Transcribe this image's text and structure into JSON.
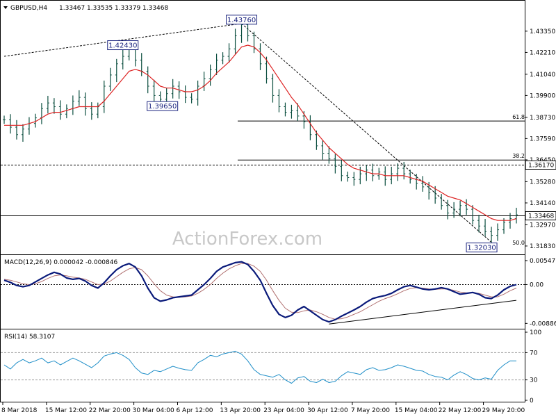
{
  "colors": {
    "background": "#ffffff",
    "price_bar": "#0b4e3f",
    "ma_line": "#dd2222",
    "macd_line": "#0a1a7a",
    "signal_line": "#b07070",
    "rsi_line": "#1e8ec8",
    "watermark": "#c8c8c8",
    "label_box": "#1a237e"
  },
  "chart_data": [
    {
      "type": "line",
      "panel": "price",
      "title": "GBPUSD,H4",
      "ohlc": {
        "open": "1.33467",
        "high": "1.33535",
        "low": "1.33379",
        "close": "1.33468"
      },
      "ylim": [
        1.3153,
        1.4435
      ],
      "y_ticks": [
        "1.43350",
        "1.42210",
        "1.41040",
        "1.39900",
        "1.38730",
        "1.37590",
        "1.36450",
        "1.35280",
        "1.34140",
        "1.32970",
        "1.31830"
      ],
      "x_tick_labels": [
        "8 Mar 2018",
        "15 Mar 12:00",
        "22 Mar 20:00",
        "30 Mar 04:00",
        "6 Apr 12:00",
        "13 Apr 20:00",
        "23 Apr 04:00",
        "30 Apr 12:00",
        "7 May 20:00",
        "15 May 04:00",
        "22 May 12:00",
        "29 May 20:00"
      ],
      "series": [
        {
          "role": "close",
          "values": [
            1.386,
            1.382,
            1.378,
            1.381,
            1.384,
            1.387,
            1.392,
            1.395,
            1.393,
            1.389,
            1.392,
            1.396,
            1.398,
            1.392,
            1.389,
            1.393,
            1.404,
            1.41,
            1.416,
            1.42,
            1.424,
            1.418,
            1.412,
            1.404,
            1.399,
            1.397,
            1.4,
            1.404,
            1.401,
            1.398,
            1.397,
            1.404,
            1.408,
            1.413,
            1.418,
            1.42,
            1.424,
            1.431,
            1.437,
            1.431,
            1.424,
            1.416,
            1.408,
            1.399,
            1.393,
            1.39,
            1.391,
            1.388,
            1.385,
            1.378,
            1.372,
            1.368,
            1.365,
            1.361,
            1.356,
            1.355,
            1.354,
            1.357,
            1.359,
            1.356,
            1.358,
            1.354,
            1.357,
            1.36,
            1.357,
            1.354,
            1.352,
            1.35,
            1.347,
            1.344,
            1.34,
            1.336,
            1.338,
            1.34,
            1.338,
            1.332,
            1.329,
            1.326,
            1.324,
            1.327,
            1.331,
            1.333,
            1.335
          ]
        },
        {
          "role": "moving-average",
          "values": [
            1.383,
            1.383,
            1.383,
            1.383,
            1.384,
            1.385,
            1.387,
            1.389,
            1.39,
            1.39,
            1.391,
            1.392,
            1.393,
            1.393,
            1.393,
            1.393,
            1.396,
            1.4,
            1.404,
            1.408,
            1.412,
            1.413,
            1.412,
            1.41,
            1.407,
            1.404,
            1.403,
            1.403,
            1.402,
            1.401,
            1.401,
            1.402,
            1.404,
            1.407,
            1.411,
            1.414,
            1.417,
            1.421,
            1.425,
            1.426,
            1.425,
            1.422,
            1.418,
            1.413,
            1.408,
            1.403,
            1.398,
            1.394,
            1.389,
            1.384,
            1.379,
            1.375,
            1.371,
            1.368,
            1.365,
            1.362,
            1.36,
            1.359,
            1.358,
            1.357,
            1.357,
            1.356,
            1.356,
            1.356,
            1.356,
            1.355,
            1.354,
            1.353,
            1.351,
            1.349,
            1.347,
            1.345,
            1.344,
            1.343,
            1.341,
            1.339,
            1.337,
            1.335,
            1.333,
            1.332,
            1.332,
            1.332,
            1.333
          ]
        }
      ],
      "annotations": [
        {
          "text": "1.43760",
          "x": 38,
          "y": 1.4376
        },
        {
          "text": "1.42430",
          "x": 19,
          "y": 1.4243
        },
        {
          "text": "1.39650",
          "x": 26,
          "y": 1.3965
        },
        {
          "text": "1.32030",
          "x": 78,
          "y": 1.3203
        }
      ],
      "horizontal_lines": [
        {
          "style": "dashed",
          "y": 1.3617,
          "value_label": "1.36170"
        },
        {
          "style": "solid",
          "y": 1.3345,
          "value_label": "1.33468"
        }
      ],
      "fibonacci": [
        {
          "level_label": "61.8",
          "y": 1.3853
        },
        {
          "level_label": "38.2",
          "y": 1.3644
        },
        {
          "level_label": "50.0",
          "y": 1.318
        }
      ],
      "trendlines": [
        {
          "style": "dashed",
          "from": [
            0,
            1.42
          ],
          "to": [
            38,
            1.4376
          ]
        },
        {
          "style": "dashed",
          "from": [
            38,
            1.4376
          ],
          "to": [
            78,
            1.3203
          ]
        }
      ],
      "watermark": "ActionForex.com"
    },
    {
      "type": "line",
      "panel": "macd",
      "title": "MACD(12,26,9) 0.000042 -0.000846",
      "ylim": [
        -0.0096,
        0.0061
      ],
      "y_ticks": [
        "0.00547",
        "0.00",
        "-0.00886"
      ],
      "series": [
        {
          "role": "macd",
          "values": [
            0.001,
            0.0005,
            -0.0002,
            -0.0005,
            -0.0002,
            0.0006,
            0.0014,
            0.0022,
            0.0028,
            0.0024,
            0.0015,
            0.0012,
            0.0014,
            0.0008,
            -0.0002,
            -0.0008,
            0.0004,
            0.002,
            0.0034,
            0.0043,
            0.0048,
            0.004,
            0.002,
            -0.0008,
            -0.003,
            -0.0038,
            -0.0035,
            -0.003,
            -0.0028,
            -0.0026,
            -0.0024,
            -0.0012,
            0.0,
            0.0014,
            0.003,
            0.004,
            0.0045,
            0.005,
            0.0052,
            0.0046,
            0.003,
            0.001,
            -0.002,
            -0.0048,
            -0.0068,
            -0.0075,
            -0.007,
            -0.0058,
            -0.005,
            -0.006,
            -0.007,
            -0.008,
            -0.0085,
            -0.008,
            -0.0072,
            -0.0065,
            -0.0058,
            -0.005,
            -0.004,
            -0.0032,
            -0.0028,
            -0.0025,
            -0.002,
            -0.0012,
            -0.0005,
            -0.0002,
            -0.0006,
            -0.001,
            -0.0012,
            -0.001,
            -0.0007,
            -0.001,
            -0.0016,
            -0.0022,
            -0.002,
            -0.0018,
            -0.0022,
            -0.003,
            -0.0032,
            -0.0024,
            -0.0012,
            -0.0004,
            0.0
          ]
        },
        {
          "role": "signal",
          "values": [
            0.0012,
            0.001,
            0.0006,
            0.0002,
            0.0,
            0.0002,
            0.0007,
            0.0014,
            0.002,
            0.0022,
            0.002,
            0.0017,
            0.0015,
            0.0012,
            0.0006,
            0.0,
            0.0001,
            0.0008,
            0.0018,
            0.0028,
            0.0036,
            0.0039,
            0.0034,
            0.002,
            0.0002,
            -0.0014,
            -0.0024,
            -0.0028,
            -0.0029,
            -0.0028,
            -0.0026,
            -0.002,
            -0.0011,
            0.0,
            0.0014,
            0.0026,
            0.0036,
            0.0043,
            0.0048,
            0.0048,
            0.0042,
            0.003,
            0.001,
            -0.0014,
            -0.0036,
            -0.0054,
            -0.0063,
            -0.0064,
            -0.006,
            -0.0058,
            -0.0062,
            -0.0068,
            -0.0075,
            -0.0079,
            -0.0078,
            -0.0074,
            -0.0068,
            -0.0062,
            -0.0054,
            -0.0046,
            -0.0038,
            -0.0032,
            -0.0027,
            -0.0021,
            -0.0014,
            -0.0009,
            -0.0007,
            -0.0008,
            -0.001,
            -0.0011,
            -0.001,
            -0.001,
            -0.0013,
            -0.0017,
            -0.0019,
            -0.0019,
            -0.002,
            -0.0024,
            -0.0028,
            -0.0028,
            -0.0022,
            -0.0014,
            -0.0008
          ]
        }
      ],
      "trendlines": [
        {
          "style": "solid",
          "from": [
            52,
            -0.009
          ],
          "to": [
            82,
            -0.0036
          ]
        }
      ],
      "horizontal_lines": [
        {
          "style": "dotted",
          "y": 0.0
        }
      ]
    },
    {
      "type": "line",
      "panel": "rsi",
      "title": "RSI(14) 58.3107",
      "ylim": [
        0,
        100
      ],
      "y_ticks": [
        "100",
        "70",
        "30",
        "0"
      ],
      "series": [
        {
          "role": "rsi",
          "values": [
            52,
            46,
            55,
            60,
            55,
            58,
            62,
            55,
            58,
            52,
            57,
            62,
            58,
            53,
            48,
            55,
            65,
            68,
            70,
            66,
            60,
            48,
            40,
            38,
            44,
            42,
            46,
            50,
            47,
            45,
            44,
            55,
            60,
            66,
            64,
            68,
            70,
            72,
            68,
            58,
            45,
            38,
            36,
            34,
            38,
            30,
            25,
            33,
            35,
            28,
            26,
            31,
            26,
            28,
            36,
            42,
            40,
            38,
            45,
            48,
            44,
            45,
            48,
            52,
            50,
            47,
            44,
            43,
            38,
            35,
            34,
            30,
            37,
            42,
            38,
            32,
            30,
            33,
            31,
            44,
            52,
            58,
            58
          ]
        }
      ],
      "horizontal_lines": [
        {
          "style": "dashed",
          "y": 70
        },
        {
          "style": "dashed",
          "y": 30
        }
      ]
    }
  ]
}
